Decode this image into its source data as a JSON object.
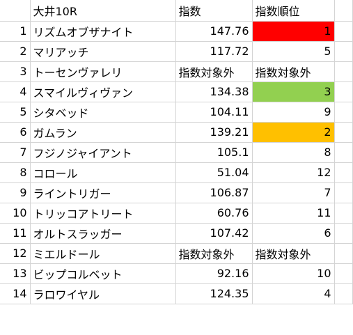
{
  "header": {
    "race": "大井10R",
    "index": "指数",
    "rank": "指数順位"
  },
  "colors": {
    "rank_1": "#ff0000",
    "rank_2": "#ffc000",
    "rank_3": "#92d050"
  },
  "rows": [
    {
      "no": "1",
      "name": "リズムオブザナイト",
      "index": "147.76",
      "rank": "1"
    },
    {
      "no": "2",
      "name": "マリアッチ",
      "index": "117.72",
      "rank": "5"
    },
    {
      "no": "3",
      "name": "トーセンヴァレリ",
      "index": "指数対象外",
      "rank": "指数対象外"
    },
    {
      "no": "4",
      "name": "スマイルヴィヴァン",
      "index": "134.38",
      "rank": "3"
    },
    {
      "no": "5",
      "name": "シタベッド",
      "index": "104.11",
      "rank": "9"
    },
    {
      "no": "6",
      "name": "ガムラン",
      "index": "139.21",
      "rank": "2"
    },
    {
      "no": "7",
      "name": "フジノジャイアント",
      "index": "105.1",
      "rank": "8"
    },
    {
      "no": "8",
      "name": "コロール",
      "index": "51.04",
      "rank": "12"
    },
    {
      "no": "9",
      "name": "ライントリガー",
      "index": "106.87",
      "rank": "7"
    },
    {
      "no": "10",
      "name": "トリッコアトリート",
      "index": "60.76",
      "rank": "11"
    },
    {
      "no": "11",
      "name": "オルトスラッガー",
      "index": "107.42",
      "rank": "6"
    },
    {
      "no": "12",
      "name": "ミエルドール",
      "index": "指数対象外",
      "rank": "指数対象外"
    },
    {
      "no": "13",
      "name": "ビップコルベット",
      "index": "92.16",
      "rank": "10"
    },
    {
      "no": "14",
      "name": "ラロワイヤル",
      "index": "124.35",
      "rank": "4"
    }
  ]
}
